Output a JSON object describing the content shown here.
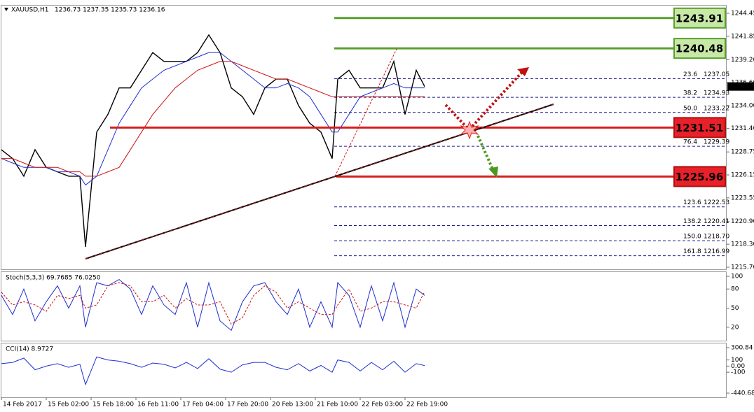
{
  "chart_data": [
    {
      "type": "line",
      "title": "XAUUSD,H1",
      "subtitle": "1236.73 1237.35 1235.73 1236.16",
      "x": [
        0,
        4,
        8,
        12,
        16,
        20,
        24,
        28,
        30,
        34,
        38,
        42,
        46,
        50,
        54,
        58,
        62,
        66,
        70,
        74,
        78,
        82,
        86,
        90,
        94,
        98,
        102,
        106,
        110,
        114,
        118,
        120,
        124,
        128,
        132,
        136,
        140,
        144,
        148,
        151
      ],
      "series": [
        {
          "color": "#000000",
          "values": [
            1229,
            1228,
            1226,
            1229,
            1227,
            1226.5,
            1226,
            1226,
            1218,
            1231,
            1233,
            1236,
            1236,
            1238,
            1240,
            1239,
            1239,
            1239,
            1240,
            1242,
            1240,
            1236,
            1235,
            1233,
            1236,
            1237,
            1237,
            1234,
            1232,
            1231,
            1228,
            1237,
            1238,
            1236,
            1236,
            1236,
            1239,
            1233,
            1238,
            1236.16
          ]
        },
        {
          "color": "#1f2fd0",
          "values": [
            1228,
            1227.5,
            1227,
            1227,
            1227,
            1226.5,
            1226.5,
            1226,
            1225,
            1226,
            1229,
            1232,
            1234,
            1236,
            1237,
            1238,
            1238.5,
            1239,
            1239.5,
            1240,
            1240,
            1239,
            1238,
            1237,
            1236,
            1236,
            1236.5,
            1236,
            1235,
            1233,
            1231,
            1231,
            1233,
            1235,
            1235.5,
            1236,
            1236.5,
            1236,
            1236,
            1236
          ]
        },
        {
          "color": "#d01010",
          "values": [
            1228,
            1228,
            1227.5,
            1227,
            1227,
            1227,
            1226.5,
            1226.5,
            1226,
            1226,
            1226.5,
            1227,
            1229,
            1231,
            1233,
            1234.5,
            1236,
            1237,
            1238,
            1238.5,
            1239,
            1239,
            1238.5,
            1238,
            1237.5,
            1237,
            1237,
            1236.5,
            1236,
            1235.5,
            1235,
            1235,
            1235,
            1235,
            1235,
            1235,
            1235,
            1235,
            1235,
            1235
          ]
        }
      ],
      "xlim": [
        0,
        258
      ],
      "xticks": [
        {
          "value": 0,
          "label": "14 Feb 2017"
        },
        {
          "value": 16,
          "label": "15 Feb 02:00"
        },
        {
          "value": 32,
          "label": "15 Feb 18:00"
        },
        {
          "value": 48,
          "label": "16 Feb 11:00"
        },
        {
          "value": 64,
          "label": "17 Feb 04:00"
        },
        {
          "value": 80,
          "label": "17 Feb 20:00"
        },
        {
          "value": 96,
          "label": "20 Feb 13:00"
        },
        {
          "value": 112,
          "label": "21 Feb 10:00"
        },
        {
          "value": 128,
          "label": "22 Feb 03:00"
        },
        {
          "value": 144,
          "label": "22 Feb 19:00"
        }
      ],
      "ylim": [
        1215.46,
        1245.32
      ],
      "yticks": [
        1244.45,
        1241.85,
        {
          "value": 1239.2,
          "label": "1239.20"
        },
        {
          "value": 1236.6,
          "label": "1236.60"
        },
        {
          "value": 1234,
          "label": "1234.00"
        },
        {
          "value": 1231.4,
          "label": "1231.40"
        },
        1228.75,
        1226.15,
        1223.55,
        {
          "value": 1220.9,
          "label": "1220.90"
        },
        {
          "value": 1218.3,
          "label": "1218.30"
        },
        {
          "value": 1215.7,
          "label": "1215.70"
        }
      ],
      "current_price": 1236.16,
      "levels": [
        {
          "value": 1243.91,
          "color": "#5aa02c"
        },
        {
          "value": 1240.48,
          "color": "#5aa02c"
        },
        {
          "value": 1231.51,
          "color": "#d42020"
        },
        {
          "value": 1225.96,
          "color": "#d42020"
        }
      ],
      "fibonacci": [
        {
          "ratio": "23.6",
          "price": 1237.05
        },
        {
          "ratio": "38.2",
          "price": 1234.93
        },
        {
          "ratio": "50.0",
          "price": 1233.22
        },
        {
          "ratio": "76.4",
          "price": 1229.39
        },
        {
          "ratio": "123.6",
          "price": 1222.53
        },
        {
          "ratio": "138.2",
          "price": 1220.41
        },
        {
          "ratio": "150.0",
          "price": {
            "value": 1218.7,
            "label": "1218.70"
          }
        },
        {
          "ratio": "161.8",
          "price": 1216.99
        }
      ]
    },
    {
      "type": "line",
      "title": "Stoch(5,3,3) 69.7685 76.0250",
      "x": [
        0,
        4,
        8,
        12,
        16,
        20,
        24,
        28,
        30,
        34,
        38,
        42,
        46,
        50,
        54,
        58,
        62,
        66,
        70,
        74,
        78,
        82,
        86,
        90,
        94,
        98,
        102,
        106,
        110,
        114,
        118,
        120,
        124,
        128,
        132,
        136,
        140,
        144,
        148,
        151
      ],
      "series": [
        {
          "color": "#1f2fd0",
          "values": [
            70,
            40,
            80,
            30,
            60,
            85,
            50,
            85,
            20,
            90,
            85,
            95,
            80,
            40,
            85,
            55,
            40,
            90,
            20,
            90,
            30,
            15,
            60,
            85,
            90,
            60,
            40,
            80,
            20,
            60,
            20,
            90,
            70,
            20,
            85,
            30,
            90,
            20,
            80,
            70
          ]
        },
        {
          "color": "#d01010",
          "style": "dashed",
          "values": [
            75,
            55,
            60,
            55,
            45,
            70,
            65,
            70,
            50,
            55,
            85,
            90,
            85,
            60,
            60,
            70,
            50,
            65,
            55,
            55,
            60,
            25,
            35,
            70,
            85,
            75,
            50,
            60,
            50,
            40,
            40,
            55,
            80,
            45,
            50,
            60,
            60,
            55,
            50,
            76
          ]
        }
      ],
      "xlim": [
        0,
        258
      ],
      "ylim": [
        0,
        100
      ],
      "yticks": [
        20,
        50,
        80,
        100
      ]
    },
    {
      "type": "line",
      "title": "CCI(14) 8.9727",
      "x": [
        0,
        4,
        8,
        12,
        16,
        20,
        24,
        28,
        30,
        34,
        38,
        42,
        46,
        50,
        54,
        58,
        62,
        66,
        70,
        74,
        78,
        82,
        86,
        90,
        94,
        98,
        102,
        106,
        110,
        114,
        118,
        120,
        124,
        128,
        132,
        136,
        140,
        144,
        148,
        151
      ],
      "series": [
        {
          "color": "#1f2fd0",
          "values": [
            40,
            60,
            130,
            -60,
            0,
            40,
            -20,
            30,
            -300,
            150,
            100,
            80,
            40,
            -20,
            50,
            30,
            -30,
            60,
            -40,
            120,
            -50,
            -100,
            20,
            60,
            60,
            -20,
            -60,
            40,
            -80,
            10,
            -100,
            100,
            60,
            -80,
            60,
            -60,
            80,
            -100,
            40,
            9
          ]
        }
      ],
      "xlim": [
        0,
        258
      ],
      "ylim": [
        -440.68,
        300.84
      ],
      "yticks": [
        300.84,
        100,
        {
          "value": 0,
          "label": "0.00"
        },
        -100,
        -440.68
      ]
    }
  ]
}
